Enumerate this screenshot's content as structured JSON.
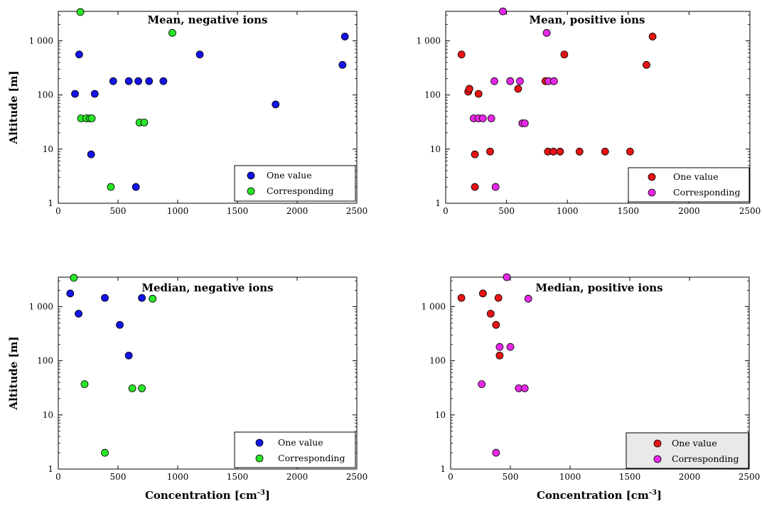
{
  "charts": {
    "mean_negative": {
      "title": "Mean, negative ions",
      "ylabel": "Altitude [m]",
      "xlabel": "",
      "legend": [
        "One value",
        "Corresponding"
      ]
    },
    "mean_positive": {
      "title": "Mean, positive ions",
      "ylabel": "",
      "xlabel": "",
      "legend": [
        "One value",
        "Corresponding"
      ]
    },
    "median_negative": {
      "title": "Median, negative ions",
      "ylabel": "Altitude [m]",
      "xlabel": "Concentration [cm",
      "legend": [
        "One value",
        "Corresponding"
      ]
    },
    "median_positive": {
      "title": "Median, positive ions",
      "ylabel": "",
      "xlabel": "Concentration [cm",
      "legend": [
        "One value",
        "Corresponding"
      ]
    }
  },
  "xlabel_exponent": "-3",
  "xlabel_suffix": "]",
  "x_tick_labels": [
    "0",
    "500",
    "1000",
    "1500",
    "2000",
    "2500"
  ],
  "y_tick_labels": [
    "1",
    "10",
    "100",
    "1 000"
  ],
  "colors": {
    "negative_one_value": "#1414e6",
    "negative_corresponding": "#28e628",
    "positive_one_value": "#e61414",
    "positive_corresponding": "#e628e6"
  },
  "chart_data": [
    {
      "type": "scatter",
      "title": "Mean, negative ions",
      "xlabel": "",
      "ylabel": "Altitude [m]",
      "xlim": [
        0,
        2500
      ],
      "ylim": [
        1,
        3500
      ],
      "yscale": "log",
      "legend_position": "bottom-right",
      "series": [
        {
          "name": "One value",
          "color": "#1414e6",
          "points": [
            [
              175,
              560
            ],
            [
              140,
              105
            ],
            [
              305,
              105
            ],
            [
              275,
              8
            ],
            [
              460,
              180
            ],
            [
              590,
              180
            ],
            [
              670,
              180
            ],
            [
              760,
              180
            ],
            [
              880,
              180
            ],
            [
              650,
              2
            ],
            [
              1185,
              560
            ],
            [
              1820,
              67
            ],
            [
              2380,
              360
            ],
            [
              2400,
              1200
            ]
          ]
        },
        {
          "name": "Corresponding",
          "color": "#28e628",
          "points": [
            [
              185,
              3400
            ],
            [
              190,
              37
            ],
            [
              235,
              37
            ],
            [
              265,
              37
            ],
            [
              280,
              37
            ],
            [
              680,
              31
            ],
            [
              720,
              31
            ],
            [
              440,
              2
            ],
            [
              955,
              1400
            ]
          ]
        }
      ]
    },
    {
      "type": "scatter",
      "title": "Mean, positive ions",
      "xlabel": "",
      "ylabel": "",
      "xlim": [
        0,
        2500
      ],
      "ylim": [
        1,
        3500
      ],
      "yscale": "log",
      "legend_position": "bottom-right",
      "series": [
        {
          "name": "One value",
          "color": "#e61414",
          "points": [
            [
              130,
              560
            ],
            [
              185,
              115
            ],
            [
              195,
              130
            ],
            [
              270,
              105
            ],
            [
              240,
              8
            ],
            [
              365,
              9
            ],
            [
              240,
              2
            ],
            [
              530,
              180
            ],
            [
              595,
              130
            ],
            [
              820,
              180
            ],
            [
              975,
              560
            ],
            [
              840,
              9
            ],
            [
              885,
              9
            ],
            [
              940,
              9
            ],
            [
              1100,
              9
            ],
            [
              1310,
              9
            ],
            [
              1515,
              9
            ],
            [
              1650,
              360
            ],
            [
              1700,
              1200
            ]
          ]
        },
        {
          "name": "Corresponding",
          "color": "#e628e6",
          "points": [
            [
              470,
              3500
            ],
            [
              230,
              37
            ],
            [
              270,
              37
            ],
            [
              305,
              37
            ],
            [
              375,
              37
            ],
            [
              400,
              180
            ],
            [
              530,
              180
            ],
            [
              610,
              180
            ],
            [
              630,
              30
            ],
            [
              650,
              30
            ],
            [
              410,
              2
            ],
            [
              830,
              1400
            ],
            [
              845,
              180
            ],
            [
              890,
              180
            ]
          ]
        }
      ]
    },
    {
      "type": "scatter",
      "title": "Median, negative ions",
      "xlabel": "Concentration [cm-3]",
      "ylabel": "Altitude [m]",
      "xlim": [
        0,
        2500
      ],
      "ylim": [
        1,
        3500
      ],
      "yscale": "log",
      "legend_position": "bottom-right",
      "series": [
        {
          "name": "One value",
          "color": "#1414e6",
          "points": [
            [
              100,
              1750
            ],
            [
              170,
              740
            ],
            [
              390,
              1450
            ],
            [
              515,
              460
            ],
            [
              590,
              125
            ],
            [
              700,
              1450
            ]
          ]
        },
        {
          "name": "Corresponding",
          "color": "#28e628",
          "points": [
            [
              130,
              3400
            ],
            [
              220,
              37
            ],
            [
              620,
              31
            ],
            [
              700,
              31
            ],
            [
              390,
              2
            ],
            [
              790,
              1400
            ]
          ]
        }
      ]
    },
    {
      "type": "scatter",
      "title": "Median, positive ions",
      "xlabel": "Concentration [cm-3]",
      "ylabel": "",
      "xlim": [
        0,
        2500
      ],
      "ylim": [
        1,
        3500
      ],
      "yscale": "log",
      "legend_position": "bottom-right",
      "series": [
        {
          "name": "One value",
          "color": "#e61414",
          "points": [
            [
              90,
              1450
            ],
            [
              270,
              1750
            ],
            [
              335,
              740
            ],
            [
              380,
              460
            ],
            [
              400,
              1450
            ],
            [
              410,
              125
            ]
          ]
        },
        {
          "name": "Corresponding",
          "color": "#e628e6",
          "points": [
            [
              470,
              3500
            ],
            [
              410,
              180
            ],
            [
              500,
              180
            ],
            [
              260,
              37
            ],
            [
              570,
              31
            ],
            [
              620,
              31
            ],
            [
              380,
              2
            ],
            [
              650,
              1400
            ]
          ]
        }
      ]
    }
  ]
}
